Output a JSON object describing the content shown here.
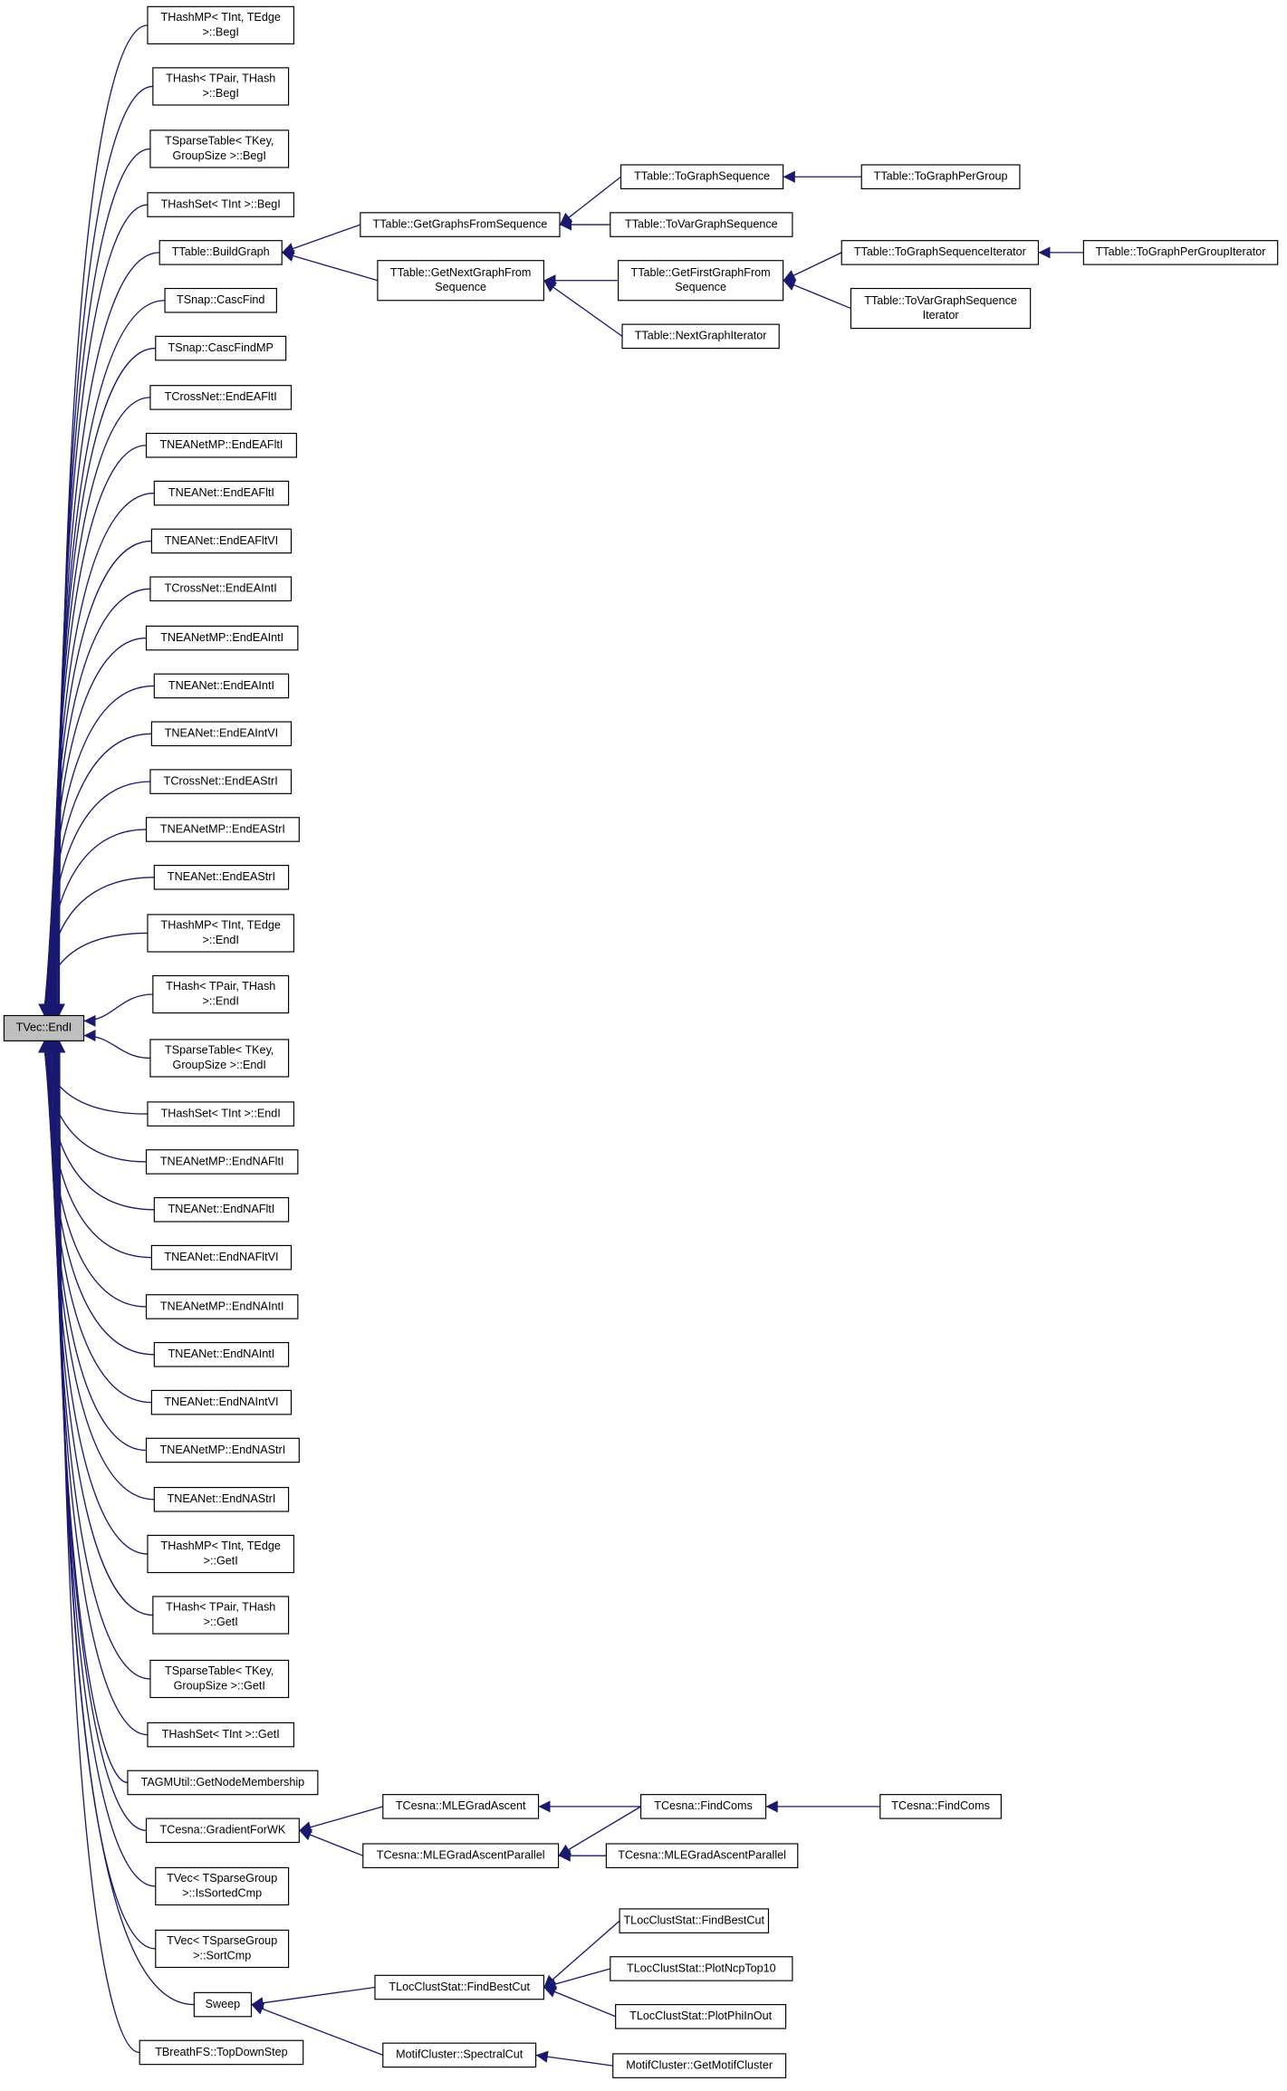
{
  "nodes": [
    {
      "lines": [
        "TVec::EndI"
      ]
    },
    {
      "lines": [
        "THashMP< TInt, TEdge",
        ">::BegI"
      ]
    },
    {
      "lines": [
        "THash< TPair, THash",
        ">::BegI"
      ]
    },
    {
      "lines": [
        "TSparseTable< TKey,",
        "GroupSize >::BegI"
      ]
    },
    {
      "lines": [
        "THashSet< TInt >::BegI"
      ]
    },
    {
      "lines": [
        "TTable::BuildGraph"
      ]
    },
    {
      "lines": [
        "TSnap::CascFind"
      ]
    },
    {
      "lines": [
        "TSnap::CascFindMP"
      ]
    },
    {
      "lines": [
        "TCrossNet::EndEAFltI"
      ]
    },
    {
      "lines": [
        "TNEANetMP::EndEAFltI"
      ]
    },
    {
      "lines": [
        "TNEANet::EndEAFltI"
      ]
    },
    {
      "lines": [
        "TNEANet::EndEAFltVI"
      ]
    },
    {
      "lines": [
        "TCrossNet::EndEAIntI"
      ]
    },
    {
      "lines": [
        "TNEANetMP::EndEAIntI"
      ]
    },
    {
      "lines": [
        "TNEANet::EndEAIntI"
      ]
    },
    {
      "lines": [
        "TNEANet::EndEAIntVI"
      ]
    },
    {
      "lines": [
        "TCrossNet::EndEAStrI"
      ]
    },
    {
      "lines": [
        "TNEANetMP::EndEAStrI"
      ]
    },
    {
      "lines": [
        "TNEANet::EndEAStrI"
      ]
    },
    {
      "lines": [
        "THashMP< TInt, TEdge",
        ">::EndI"
      ]
    },
    {
      "lines": [
        "THash< TPair, THash",
        ">::EndI"
      ]
    },
    {
      "lines": [
        "TSparseTable< TKey,",
        "GroupSize >::EndI"
      ]
    },
    {
      "lines": [
        "THashSet< TInt >::EndI"
      ]
    },
    {
      "lines": [
        "TNEANetMP::EndNAFltI"
      ]
    },
    {
      "lines": [
        "TNEANet::EndNAFltI"
      ]
    },
    {
      "lines": [
        "TNEANet::EndNAFltVI"
      ]
    },
    {
      "lines": [
        "TNEANetMP::EndNAIntI"
      ]
    },
    {
      "lines": [
        "TNEANet::EndNAIntI"
      ]
    },
    {
      "lines": [
        "TNEANet::EndNAIntVI"
      ]
    },
    {
      "lines": [
        "TNEANetMP::EndNAStrI"
      ]
    },
    {
      "lines": [
        "TNEANet::EndNAStrI"
      ]
    },
    {
      "lines": [
        "THashMP< TInt, TEdge",
        ">::GetI"
      ]
    },
    {
      "lines": [
        "THash< TPair, THash",
        ">::GetI"
      ]
    },
    {
      "lines": [
        "TSparseTable< TKey,",
        "GroupSize >::GetI"
      ]
    },
    {
      "lines": [
        "THashSet< TInt >::GetI"
      ]
    },
    {
      "lines": [
        "TAGMUtil::GetNodeMembership"
      ]
    },
    {
      "lines": [
        "TCesna::GradientForWK"
      ]
    },
    {
      "lines": [
        "TVec< TSparseGroup",
        ">::IsSortedCmp"
      ]
    },
    {
      "lines": [
        "TVec< TSparseGroup",
        ">::SortCmp"
      ]
    },
    {
      "lines": [
        "Sweep"
      ]
    },
    {
      "lines": [
        "TBreathFS::TopDownStep"
      ]
    },
    {
      "lines": [
        "TTable::GetGraphsFromSequence"
      ]
    },
    {
      "lines": [
        "TTable::GetNextGraphFrom",
        "Sequence"
      ]
    },
    {
      "lines": [
        "TTable::ToGraphSequence"
      ]
    },
    {
      "lines": [
        "TTable::ToVarGraphSequence"
      ]
    },
    {
      "lines": [
        "TTable::ToGraphPerGroup"
      ]
    },
    {
      "lines": [
        "TTable::GetFirstGraphFrom",
        "Sequence"
      ]
    },
    {
      "lines": [
        "TTable::NextGraphIterator"
      ]
    },
    {
      "lines": [
        "TTable::ToGraphSequenceIterator"
      ]
    },
    {
      "lines": [
        "TTable::ToGraphPerGroupIterator"
      ]
    },
    {
      "lines": [
        "TTable::ToVarGraphSequence",
        "Iterator"
      ]
    },
    {
      "lines": [
        "TCesna::MLEGradAscent"
      ]
    },
    {
      "lines": [
        "TCesna::MLEGradAscentParallel"
      ]
    },
    {
      "lines": [
        "TCesna::FindComs"
      ]
    },
    {
      "lines": [
        "TCesna::FindComs"
      ]
    },
    {
      "lines": [
        "TCesna::MLEGradAscentParallel"
      ]
    },
    {
      "lines": [
        "TLocClustStat::FindBestCut"
      ]
    },
    {
      "lines": [
        "MotifCluster::SpectralCut"
      ]
    },
    {
      "lines": [
        "TLocClustStat::FindBestCut"
      ]
    },
    {
      "lines": [
        "TLocClustStat::PlotNcpTop10"
      ]
    },
    {
      "lines": [
        "TLocClustStat::PlotPhiInOut"
      ]
    },
    {
      "lines": [
        "MotifCluster::GetMotifCluster"
      ]
    }
  ]
}
